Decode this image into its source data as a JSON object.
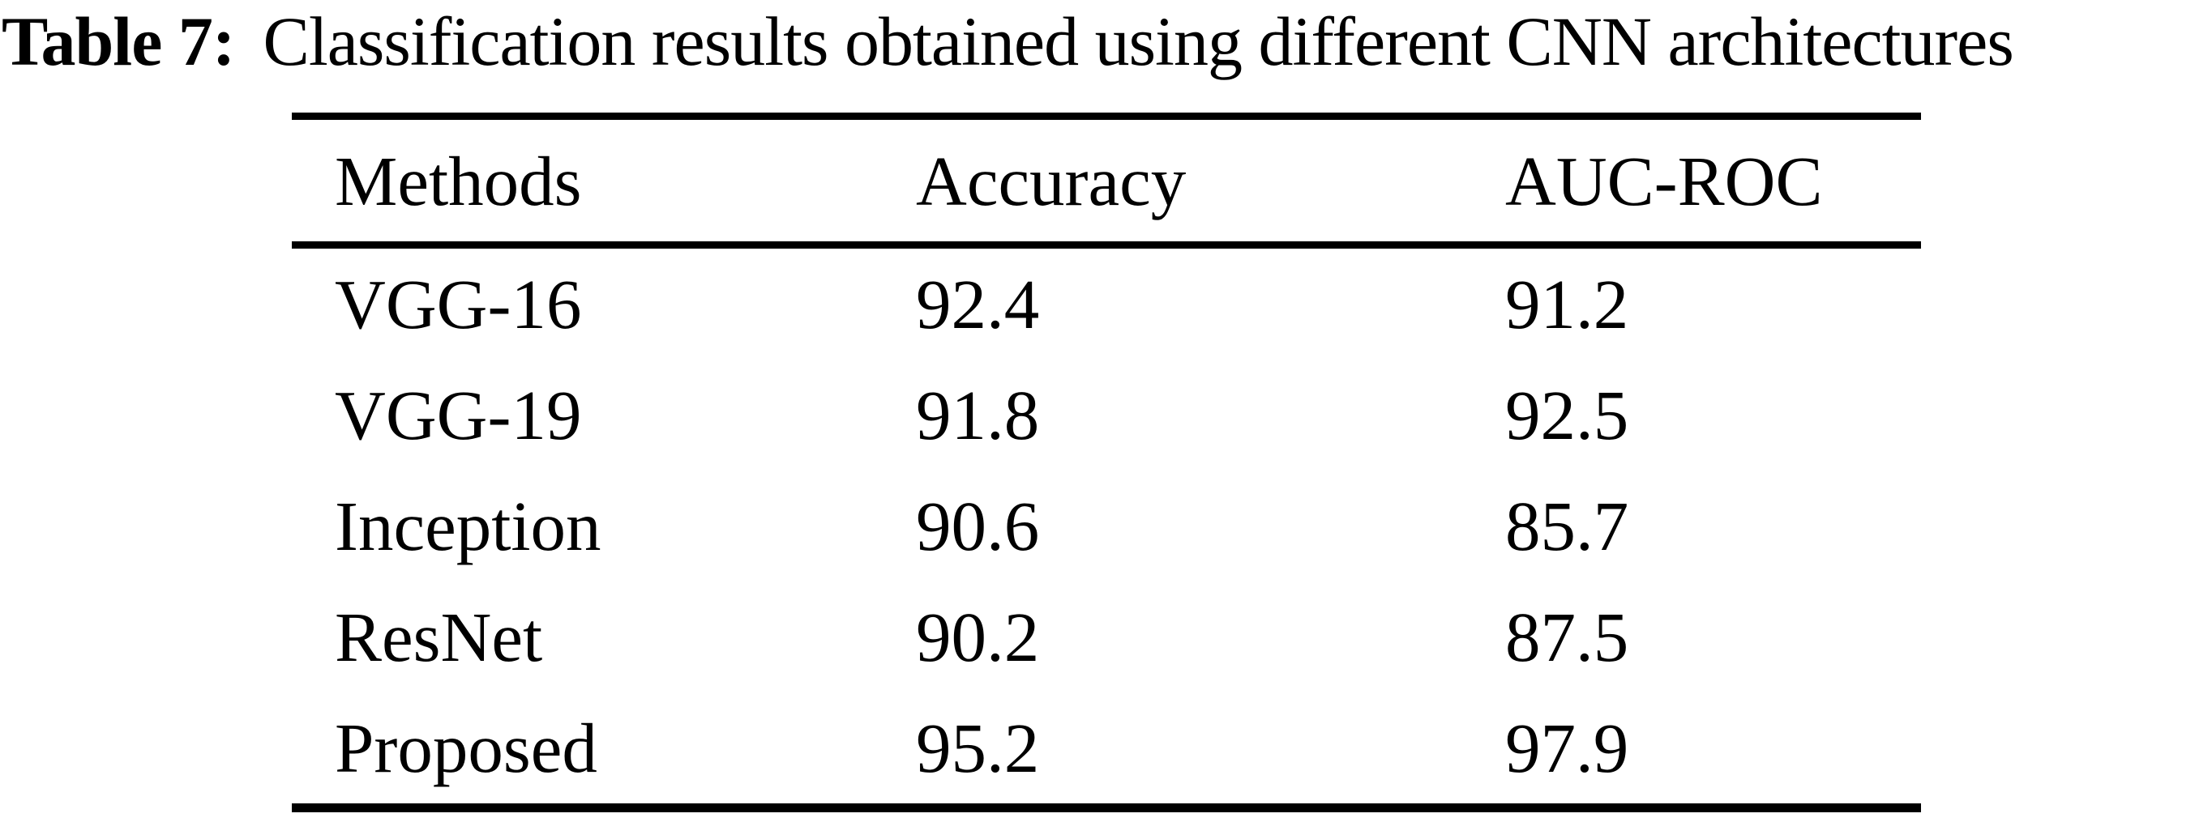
{
  "caption": {
    "label": "Table 7:",
    "text": "Classification results obtained using different CNN architectures"
  },
  "table": {
    "columns": [
      "Methods",
      "Accuracy",
      "AUC-ROC"
    ],
    "rows": [
      {
        "method": "VGG-16",
        "accuracy": "92.4",
        "auc_roc": "91.2"
      },
      {
        "method": "VGG-19",
        "accuracy": "91.8",
        "auc_roc": "92.5"
      },
      {
        "method": "Inception",
        "accuracy": "90.6",
        "auc_roc": "85.7"
      },
      {
        "method": "ResNet",
        "accuracy": "90.2",
        "auc_roc": "87.5"
      },
      {
        "method": "Proposed",
        "accuracy": "95.2",
        "auc_roc": "97.9"
      }
    ]
  },
  "chart_data": {
    "type": "table",
    "title": "Table 7: Classification results obtained using different CNN architectures",
    "columns": [
      "Methods",
      "Accuracy",
      "AUC-ROC"
    ],
    "categories": [
      "VGG-16",
      "VGG-19",
      "Inception",
      "ResNet",
      "Proposed"
    ],
    "series": [
      {
        "name": "Accuracy",
        "values": [
          92.4,
          91.8,
          90.6,
          90.2,
          95.2
        ]
      },
      {
        "name": "AUC-ROC",
        "values": [
          91.2,
          92.5,
          85.7,
          87.5,
          97.9
        ]
      }
    ]
  },
  "colors": {
    "text": "#000000",
    "background": "#ffffff",
    "rule": "#000000"
  }
}
